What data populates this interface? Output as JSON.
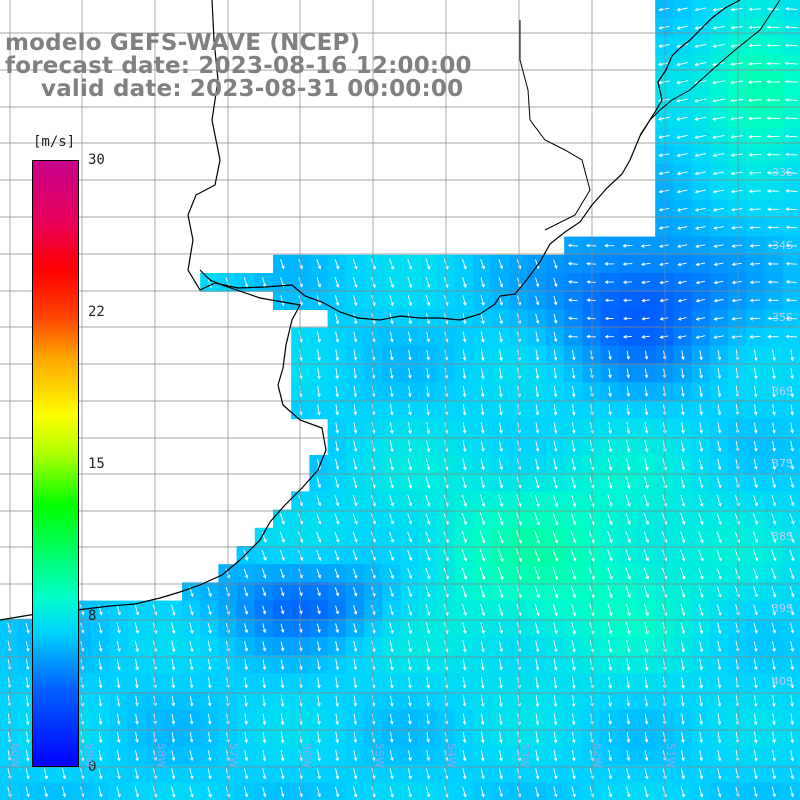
{
  "title": {
    "line1": "modelo GEFS-WAVE (NCEP)",
    "line2": "forecast date: 2023-08-16 12:00:00",
    "line3": "valid date: 2023-08-31 00:00:00"
  },
  "colorbar": {
    "unit": "[m/s]",
    "ticks": [
      "30",
      "22",
      "15",
      "8",
      "0"
    ],
    "min": 0,
    "max": 30,
    "colors": [
      "#0000ff",
      "#00d2ff",
      "#00ff00",
      "#ffff00",
      "#ff0000",
      "#c8008c"
    ]
  },
  "lat_labels": [
    "33S",
    "34S",
    "35S",
    "36S",
    "37S",
    "38S",
    "39S",
    "40S"
  ],
  "lon_labels": [
    "60W",
    "59W",
    "58W",
    "57W",
    "56W",
    "55W",
    "54W",
    "53W",
    "52W",
    "51W"
  ],
  "colors": {
    "land": "#ffffff",
    "coast": "#000000",
    "grid": "#808080",
    "arrows": "#ffffff",
    "title": "#808080"
  }
}
